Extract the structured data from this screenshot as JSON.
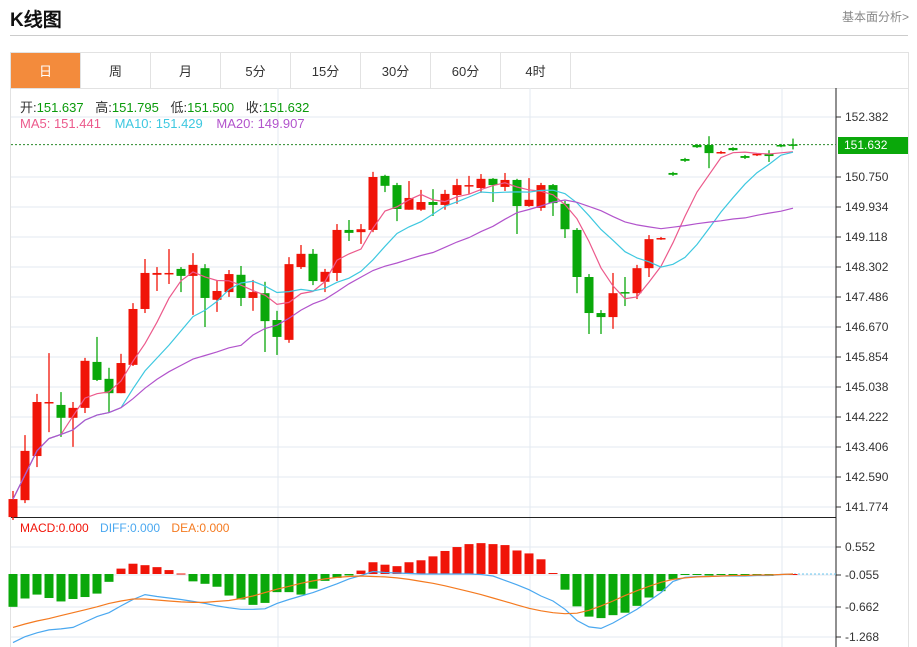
{
  "header": {
    "title": "K线图",
    "link": "基本面分析>"
  },
  "tabs": [
    {
      "label": "日",
      "active": true
    },
    {
      "label": "周"
    },
    {
      "label": "月"
    },
    {
      "label": "5分"
    },
    {
      "label": "15分"
    },
    {
      "label": "30分"
    },
    {
      "label": "60分"
    },
    {
      "label": "4时"
    }
  ],
  "info": {
    "open_label": "开:",
    "open": "151.637",
    "high_label": "高:",
    "high": "151.795",
    "low_label": "低:",
    "low": "151.500",
    "close_label": "收:",
    "close": "151.632"
  },
  "ma_legend": {
    "ma5": "MA5: 151.441",
    "ma10": "MA10: 151.429",
    "ma20": "MA20: 149.907"
  },
  "macd_legend": {
    "macd": "MACD:0.000",
    "diff": "DIFF:0.000",
    "dea": "DEA:0.000"
  },
  "current_price": "151.632",
  "colors": {
    "up": "#f01408",
    "down": "#0aa80a",
    "ma5": "#ec5a8c",
    "ma10": "#3ec8e0",
    "ma20": "#b254cc",
    "diff": "#4aa8f0",
    "dea": "#f47a20",
    "accent": "#f38b3c"
  },
  "chart_data": [
    {
      "type": "candlestick",
      "title": "K线图",
      "price_axis_ticks": [
        "152.382",
        "150.750",
        "149.934",
        "149.118",
        "148.302",
        "147.486",
        "146.670",
        "145.854",
        "145.038",
        "144.222",
        "143.406",
        "142.590",
        "141.774"
      ],
      "ylim": [
        141.474,
        153.116
      ],
      "ohlc": [
        [
          141.5,
          142.21,
          141.42,
          141.99
        ],
        [
          141.96,
          143.73,
          141.88,
          143.3
        ],
        [
          143.16,
          144.85,
          142.86,
          144.63
        ],
        [
          144.6,
          145.96,
          143.81,
          144.63
        ],
        [
          144.55,
          144.9,
          143.68,
          144.2
        ],
        [
          144.2,
          144.63,
          143.41,
          144.47
        ],
        [
          144.47,
          145.83,
          144.33,
          145.75
        ],
        [
          145.72,
          146.4,
          145.2,
          145.23
        ],
        [
          145.26,
          145.56,
          144.36,
          144.87
        ],
        [
          144.87,
          145.94,
          144.87,
          145.69
        ],
        [
          145.64,
          147.32,
          145.61,
          147.16
        ],
        [
          147.16,
          148.52,
          147.05,
          148.14
        ],
        [
          148.09,
          148.3,
          147.65,
          148.14
        ],
        [
          148.11,
          148.79,
          147.84,
          148.14
        ],
        [
          148.25,
          148.3,
          147.62,
          148.06
        ],
        [
          148.06,
          148.68,
          147.0,
          148.36
        ],
        [
          148.27,
          148.38,
          146.67,
          147.46
        ],
        [
          147.41,
          147.95,
          147.08,
          147.65
        ],
        [
          147.62,
          148.22,
          147.49,
          148.11
        ],
        [
          148.09,
          148.33,
          147.24,
          147.46
        ],
        [
          147.46,
          147.95,
          147.11,
          147.62
        ],
        [
          147.59,
          147.9,
          145.99,
          146.83
        ],
        [
          146.86,
          147.11,
          145.91,
          146.4
        ],
        [
          146.32,
          148.57,
          146.24,
          148.38
        ],
        [
          148.3,
          148.9,
          148.25,
          148.66
        ],
        [
          148.66,
          148.79,
          147.81,
          147.92
        ],
        [
          147.9,
          148.25,
          147.62,
          148.17
        ],
        [
          148.14,
          149.47,
          147.92,
          149.31
        ],
        [
          149.31,
          149.58,
          149.01,
          149.23
        ],
        [
          149.25,
          149.47,
          148.93,
          149.33
        ],
        [
          149.31,
          150.89,
          149.25,
          150.75
        ],
        [
          150.78,
          150.81,
          150.34,
          150.51
        ],
        [
          150.53,
          150.59,
          149.55,
          149.88
        ],
        [
          149.86,
          150.64,
          149.86,
          150.18
        ],
        [
          149.86,
          150.4,
          149.83,
          150.07
        ],
        [
          150.07,
          150.42,
          149.69,
          149.99
        ],
        [
          149.99,
          150.4,
          149.86,
          150.29
        ],
        [
          150.26,
          150.7,
          150.02,
          150.53
        ],
        [
          150.51,
          150.78,
          150.29,
          150.53
        ],
        [
          150.45,
          150.83,
          150.32,
          150.7
        ],
        [
          150.7,
          150.72,
          150.07,
          150.53
        ],
        [
          150.48,
          150.86,
          150.37,
          150.67
        ],
        [
          150.67,
          150.7,
          149.2,
          149.96
        ],
        [
          149.96,
          150.72,
          149.94,
          150.13
        ],
        [
          149.91,
          150.59,
          149.83,
          150.53
        ],
        [
          150.53,
          150.56,
          149.69,
          150.04
        ],
        [
          150.02,
          150.1,
          149.09,
          149.33
        ],
        [
          149.31,
          149.36,
          147.59,
          148.03
        ],
        [
          148.03,
          148.11,
          146.48,
          147.05
        ],
        [
          147.05,
          147.13,
          146.48,
          146.94
        ],
        [
          146.94,
          148.14,
          146.62,
          147.59
        ],
        [
          147.62,
          148.03,
          147.24,
          147.59
        ],
        [
          147.59,
          148.36,
          147.43,
          148.27
        ],
        [
          148.27,
          149.17,
          148.03,
          149.06
        ],
        [
          149.06,
          149.12,
          149.04,
          149.09
        ],
        [
          150.86,
          150.89,
          150.78,
          150.81
        ],
        [
          151.24,
          151.27,
          151.16,
          151.19
        ],
        [
          151.62,
          151.65,
          151.54,
          151.56
        ],
        [
          151.62,
          151.86,
          150.99,
          151.4
        ],
        [
          151.4,
          151.46,
          151.38,
          151.43
        ],
        [
          151.54,
          151.56,
          151.46,
          151.48
        ],
        [
          151.32,
          151.35,
          151.24,
          151.27
        ],
        [
          151.35,
          151.4,
          151.32,
          151.38
        ],
        [
          151.38,
          151.48,
          151.16,
          151.32
        ],
        [
          151.62,
          151.65,
          151.56,
          151.59
        ],
        [
          151.637,
          151.795,
          151.5,
          151.632
        ]
      ],
      "moving_averages": [
        5,
        10,
        20
      ]
    },
    {
      "type": "bar+line",
      "title": "MACD",
      "axis_ticks": [
        "0.552",
        "-0.055",
        "-0.662",
        "-1.268"
      ],
      "macd": [
        -0.67,
        -0.5,
        -0.42,
        -0.49,
        -0.56,
        -0.51,
        -0.47,
        -0.4,
        -0.16,
        0.11,
        0.21,
        0.18,
        0.14,
        0.08,
        0.01,
        -0.15,
        -0.2,
        -0.26,
        -0.44,
        -0.52,
        -0.63,
        -0.59,
        -0.37,
        -0.37,
        -0.42,
        -0.3,
        -0.14,
        -0.08,
        -0.03,
        0.07,
        0.24,
        0.19,
        0.16,
        0.24,
        0.28,
        0.36,
        0.47,
        0.55,
        0.61,
        0.63,
        0.61,
        0.59,
        0.48,
        0.42,
        0.3,
        0.02,
        -0.32,
        -0.66,
        -0.87,
        -0.9,
        -0.84,
        -0.79,
        -0.65,
        -0.48,
        -0.35,
        -0.11,
        -0.02,
        -0.02,
        -0.03,
        -0.02,
        -0.03,
        -0.02,
        -0.03,
        -0.04,
        -0.02,
        0.0
      ],
      "diff": [
        -1.4,
        -1.28,
        -1.2,
        -1.14,
        -1.12,
        -1.09,
        -0.98,
        -0.87,
        -0.79,
        -0.65,
        -0.52,
        -0.42,
        -0.46,
        -0.49,
        -0.52,
        -0.56,
        -0.6,
        -0.65,
        -0.69,
        -0.72,
        -0.72,
        -0.71,
        -0.6,
        -0.52,
        -0.45,
        -0.38,
        -0.29,
        -0.2,
        -0.1,
        -0.03,
        0.05,
        0.03,
        0.02,
        0.01,
        0.0,
        0.0,
        0.0,
        0.0,
        0.0,
        -0.01,
        -0.04,
        -0.13,
        -0.22,
        -0.32,
        -0.45,
        -0.55,
        -0.72,
        -0.95,
        -1.08,
        -1.11,
        -1.0,
        -0.86,
        -0.72,
        -0.55,
        -0.38,
        -0.15,
        -0.07,
        -0.05,
        -0.05,
        -0.04,
        -0.04,
        -0.04,
        -0.03,
        -0.03,
        -0.01,
        0.0
      ],
      "dea": [
        -1.09,
        -1.02,
        -0.96,
        -0.91,
        -0.85,
        -0.79,
        -0.73,
        -0.67,
        -0.6,
        -0.55,
        -0.51,
        -0.51,
        -0.53,
        -0.55,
        -0.57,
        -0.58,
        -0.58,
        -0.56,
        -0.54,
        -0.5,
        -0.45,
        -0.38,
        -0.31,
        -0.25,
        -0.19,
        -0.14,
        -0.1,
        -0.07,
        -0.05,
        -0.04,
        -0.05,
        -0.06,
        -0.08,
        -0.11,
        -0.15,
        -0.19,
        -0.24,
        -0.3,
        -0.36,
        -0.42,
        -0.49,
        -0.56,
        -0.63,
        -0.7,
        -0.75,
        -0.79,
        -0.81,
        -0.8,
        -0.74,
        -0.65,
        -0.55,
        -0.44,
        -0.34,
        -0.25,
        -0.17,
        -0.11,
        -0.08,
        -0.06,
        -0.05,
        -0.04,
        -0.03,
        -0.03,
        -0.02,
        -0.02,
        -0.01,
        0.0
      ]
    }
  ]
}
